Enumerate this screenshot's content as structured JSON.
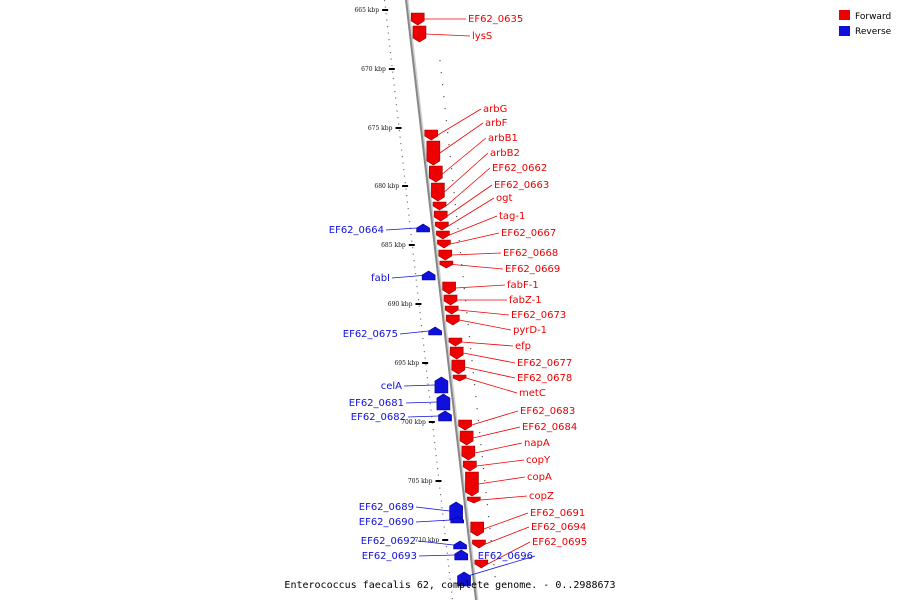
{
  "title": "Enterococcus faecalis 62, complete genome. - 0..2988673",
  "colors": {
    "forward": "#ee0000",
    "reverse": "#1010dd",
    "axis": "#888888"
  },
  "legend": [
    {
      "label": "Forward",
      "color": "#ee0000"
    },
    {
      "label": "Reverse",
      "color": "#1010dd"
    }
  ],
  "scale": {
    "unit": "kbp",
    "ticks": [
      665,
      670,
      675,
      680,
      685,
      690,
      695,
      700,
      705,
      710
    ]
  },
  "genes": [
    {
      "name": "EF62_0635",
      "strand": "forward"
    },
    {
      "name": "lysS",
      "strand": "forward"
    },
    {
      "name": "arbG",
      "strand": "forward"
    },
    {
      "name": "arbF",
      "strand": "forward"
    },
    {
      "name": "arbB1",
      "strand": "forward"
    },
    {
      "name": "arbB2",
      "strand": "forward"
    },
    {
      "name": "EF62_0662",
      "strand": "forward"
    },
    {
      "name": "EF62_0663",
      "strand": "forward"
    },
    {
      "name": "ogt",
      "strand": "forward"
    },
    {
      "name": "tag-1",
      "strand": "forward"
    },
    {
      "name": "EF62_0664",
      "strand": "reverse"
    },
    {
      "name": "EF62_0667",
      "strand": "forward"
    },
    {
      "name": "EF62_0668",
      "strand": "forward"
    },
    {
      "name": "EF62_0669",
      "strand": "forward"
    },
    {
      "name": "fabI",
      "strand": "reverse"
    },
    {
      "name": "fabF-1",
      "strand": "forward"
    },
    {
      "name": "fabZ-1",
      "strand": "forward"
    },
    {
      "name": "EF62_0673",
      "strand": "forward"
    },
    {
      "name": "pyrD-1",
      "strand": "forward"
    },
    {
      "name": "EF62_0675",
      "strand": "reverse"
    },
    {
      "name": "efp",
      "strand": "forward"
    },
    {
      "name": "EF62_0677",
      "strand": "forward"
    },
    {
      "name": "EF62_0678",
      "strand": "forward"
    },
    {
      "name": "metC",
      "strand": "forward"
    },
    {
      "name": "celA",
      "strand": "reverse"
    },
    {
      "name": "EF62_0681",
      "strand": "reverse"
    },
    {
      "name": "EF62_0682",
      "strand": "reverse"
    },
    {
      "name": "EF62_0683",
      "strand": "forward"
    },
    {
      "name": "EF62_0684",
      "strand": "forward"
    },
    {
      "name": "napA",
      "strand": "forward"
    },
    {
      "name": "copY",
      "strand": "forward"
    },
    {
      "name": "copA",
      "strand": "forward"
    },
    {
      "name": "copZ",
      "strand": "forward"
    },
    {
      "name": "EF62_0689",
      "strand": "reverse"
    },
    {
      "name": "EF62_0690",
      "strand": "reverse"
    },
    {
      "name": "EF62_0691",
      "strand": "forward"
    },
    {
      "name": "EF62_0692",
      "strand": "reverse"
    },
    {
      "name": "EF62_0693",
      "strand": "reverse"
    },
    {
      "name": "EF62_0694",
      "strand": "forward"
    },
    {
      "name": "EF62_0695",
      "strand": "forward"
    },
    {
      "name": "EF62_0696",
      "strand": "reverse"
    }
  ]
}
